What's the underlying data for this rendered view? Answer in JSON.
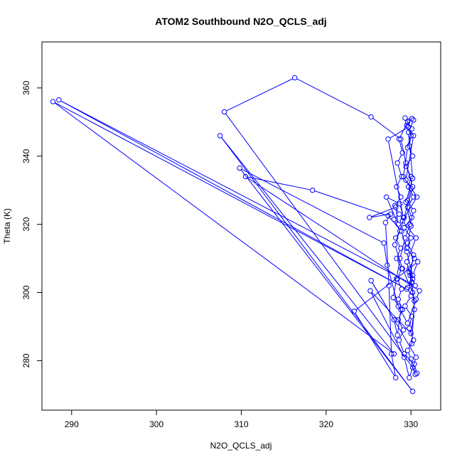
{
  "chart_data": {
    "type": "line",
    "title": "ATOM2 Southbound N2O_QCLS_adj",
    "xlabel": "N2O_QCLS_adj",
    "ylabel": "Theta (K)",
    "xlim": [
      286.5,
      333.5
    ],
    "ylim": [
      265.5,
      373.5
    ],
    "xticks": [
      290,
      300,
      310,
      320,
      330
    ],
    "yticks": [
      280,
      300,
      320,
      340,
      360
    ],
    "grid": false,
    "legend": "none",
    "series_color": "#0000ff",
    "marker": "open-circle",
    "series": [
      {
        "points": [
          [
            330.5,
            276.0
          ],
          [
            330.2,
            278.0
          ],
          [
            330.0,
            280.5
          ],
          [
            329.6,
            283.0
          ],
          [
            330.3,
            286.0
          ],
          [
            329.8,
            289.5
          ],
          [
            330.1,
            293.0
          ],
          [
            329.3,
            296.0
          ],
          [
            330.0,
            299.0
          ],
          [
            329.6,
            301.5
          ],
          [
            330.2,
            304.0
          ],
          [
            329.8,
            307.0
          ],
          [
            330.4,
            310.0
          ],
          [
            329.5,
            313.0
          ],
          [
            330.0,
            316.0
          ],
          [
            329.2,
            319.0
          ],
          [
            330.1,
            322.0
          ],
          [
            329.6,
            325.0
          ],
          [
            330.3,
            328.0
          ],
          [
            329.7,
            331.0
          ],
          [
            330.0,
            334.0
          ],
          [
            329.4,
            337.0
          ],
          [
            330.2,
            340.0
          ],
          [
            329.8,
            343.0
          ],
          [
            330.0,
            346.0
          ],
          [
            329.5,
            349.0
          ],
          [
            330.1,
            351.0
          ],
          [
            329.6,
            350.0
          ],
          [
            328.6,
            345.0
          ],
          [
            329.0,
            341.0
          ],
          [
            328.4,
            338.0
          ],
          [
            328.9,
            334.0
          ],
          [
            328.3,
            331.0
          ],
          [
            328.8,
            328.0
          ],
          [
            328.1,
            325.5
          ],
          [
            328.6,
            323.0
          ],
          [
            328.0,
            321.5
          ],
          [
            328.7,
            318.0
          ],
          [
            328.2,
            316.0
          ],
          [
            328.8,
            313.0
          ],
          [
            328.3,
            310.0
          ],
          [
            328.9,
            307.0
          ],
          [
            328.4,
            304.0
          ],
          [
            328.9,
            301.0
          ],
          [
            328.5,
            298.0
          ],
          [
            329.0,
            295.0
          ],
          [
            328.5,
            292.0
          ],
          [
            329.1,
            289.0
          ],
          [
            328.6,
            286.0
          ],
          [
            329.2,
            282.0
          ],
          [
            330.4,
            279.0
          ],
          [
            330.7,
            276.3
          ],
          [
            308.0,
            353.0
          ],
          [
            316.3,
            363.0
          ],
          [
            325.3,
            351.5
          ],
          [
            328.8,
            345.0
          ],
          [
            329.4,
            338.0
          ],
          [
            330.2,
            331.0
          ],
          [
            329.2,
            322.0
          ],
          [
            328.1,
            314.0
          ],
          [
            329.0,
            307.0
          ],
          [
            330.2,
            300.0
          ],
          [
            329.8,
            306.0
          ],
          [
            330.5,
            302.0
          ],
          [
            288.5,
            356.5
          ],
          [
            329.5,
            301.0
          ],
          [
            287.8,
            356.0
          ],
          [
            328.0,
            282.0
          ],
          [
            307.5,
            346.0
          ],
          [
            330.2,
            271.0
          ],
          [
            309.8,
            336.5
          ],
          [
            326.8,
            314.5
          ],
          [
            327.2,
            308.0
          ],
          [
            328.5,
            296.0
          ],
          [
            329.6,
            291.0
          ],
          [
            330.6,
            298.0
          ],
          [
            331.0,
            300.5
          ],
          [
            310.5,
            334.0
          ],
          [
            318.4,
            330.0
          ],
          [
            327.3,
            322.5
          ],
          [
            328.9,
            318.0
          ],
          [
            329.5,
            312.0
          ],
          [
            330.2,
            305.0
          ],
          [
            330.8,
            309.0
          ],
          [
            323.3,
            294.5
          ],
          [
            328.2,
            275.0
          ],
          [
            327.7,
            282.0
          ],
          [
            327.4,
            302.0
          ],
          [
            327.0,
            320.5
          ],
          [
            327.6,
            323.0
          ],
          [
            325.1,
            322.0
          ],
          [
            328.2,
            325.0
          ],
          [
            328.5,
            320.0
          ],
          [
            327.1,
            328.0
          ],
          [
            328.7,
            326.0
          ],
          [
            329.1,
            322.0
          ],
          [
            327.3,
            345.0
          ],
          [
            329.7,
            348.5
          ],
          [
            330.3,
            346.0
          ],
          [
            329.4,
            333.0
          ],
          [
            330.7,
            328.0
          ],
          [
            329.0,
            321.0
          ],
          [
            330.6,
            316.0
          ],
          [
            329.5,
            309.0
          ],
          [
            330.1,
            303.0
          ],
          [
            330.4,
            295.0
          ],
          [
            330.0,
            288.0
          ],
          [
            325.2,
            300.5
          ],
          [
            329.2,
            281.0
          ],
          [
            329.8,
            275.0
          ],
          [
            330.6,
            281.0
          ],
          [
            325.3,
            303.5
          ],
          [
            328.0,
            292.0
          ],
          [
            328.4,
            287.5
          ],
          [
            328.8,
            295.0
          ],
          [
            327.9,
            298.5
          ],
          [
            328.3,
            304.0
          ],
          [
            328.7,
            310.0
          ],
          [
            329.3,
            316.0
          ],
          [
            329.9,
            320.0
          ],
          [
            330.3,
            324.0
          ],
          [
            329.6,
            327.0
          ],
          [
            330.0,
            330.5
          ],
          [
            329.1,
            334.0
          ],
          [
            329.6,
            342.5
          ],
          [
            330.1,
            348.0
          ],
          [
            329.3,
            351.2
          ],
          [
            330.3,
            350.6
          ],
          [
            329.7,
            347.0
          ],
          [
            330.2,
            333.5
          ],
          [
            329.4,
            326.5
          ],
          [
            330.0,
            319.5
          ],
          [
            329.6,
            314.5
          ],
          [
            330.3,
            311.0
          ],
          [
            329.9,
            305.0
          ],
          [
            330.4,
            297.5
          ],
          [
            330.1,
            285.0
          ]
        ]
      }
    ]
  }
}
